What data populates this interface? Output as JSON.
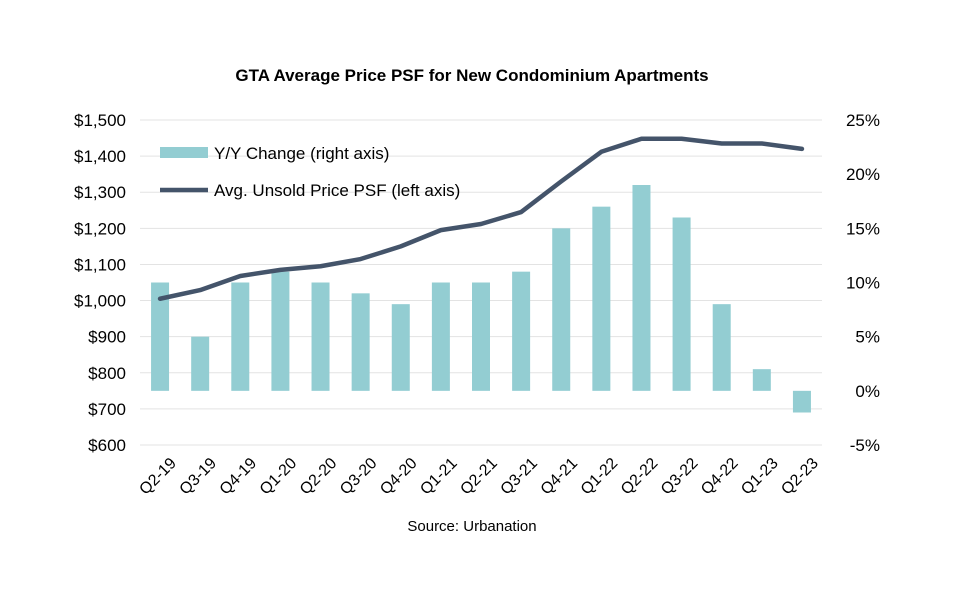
{
  "chart_data": {
    "type": "bar",
    "title": "GTA Average Price PSF for New Condominium Apartments",
    "source": "Source: Urbanation",
    "categories": [
      "Q2-19",
      "Q3-19",
      "Q4-19",
      "Q1-20",
      "Q2-20",
      "Q3-20",
      "Q4-20",
      "Q1-21",
      "Q2-21",
      "Q3-21",
      "Q4-21",
      "Q1-22",
      "Q2-22",
      "Q3-22",
      "Q4-22",
      "Q1-23",
      "Q2-23"
    ],
    "y_left": {
      "range": [
        600,
        1500
      ],
      "ticks": [
        1500,
        1400,
        1300,
        1200,
        1100,
        1000,
        900,
        800,
        700,
        600
      ],
      "tick_labels": [
        "$1,500",
        "$1,400",
        "$1,300",
        "$1,200",
        "$1,100",
        "$1,000",
        "$900",
        "$800",
        "$700",
        "$600"
      ]
    },
    "y_right": {
      "range": [
        -5,
        25
      ],
      "ticks": [
        25,
        20,
        15,
        10,
        5,
        0,
        -5
      ],
      "tick_labels": [
        "25%",
        "20%",
        "15%",
        "10%",
        "5%",
        "0%",
        "-5%"
      ]
    },
    "grid": true,
    "legend_position": "top-left",
    "series": [
      {
        "name": "Y/Y Change (right axis)",
        "type": "bar",
        "axis": "right",
        "color": "#93cdd2",
        "values": [
          10,
          5,
          10,
          11,
          10,
          9,
          8,
          10,
          10,
          11,
          15,
          17,
          19,
          16,
          8,
          2,
          -2
        ]
      },
      {
        "name": "Avg. Unsold Price PSF (left axis)",
        "type": "line",
        "axis": "left",
        "color": "#44546a",
        "values": [
          1005,
          1029,
          1068,
          1085,
          1095,
          1115,
          1150,
          1195,
          1212,
          1245,
          1330,
          1412,
          1448,
          1448,
          1435,
          1435,
          1420
        ]
      }
    ]
  }
}
